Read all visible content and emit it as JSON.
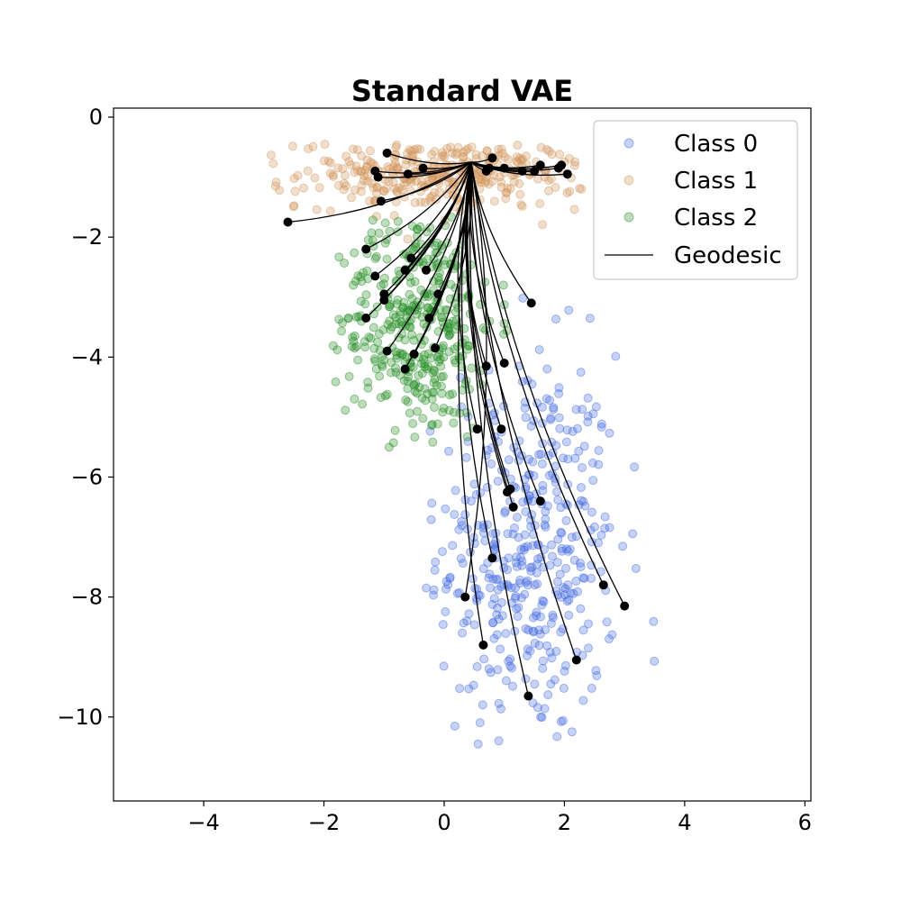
{
  "chart_data": {
    "type": "scatter",
    "title": "Standard VAE",
    "xlabel": "",
    "ylabel": "",
    "xlim": [
      -5.5,
      6.1
    ],
    "ylim": [
      -11.4,
      0.15
    ],
    "x_ticks": [
      -4,
      -2,
      0,
      2,
      4,
      6
    ],
    "y_ticks": [
      0,
      -2,
      -4,
      -6,
      -8,
      -10
    ],
    "x_tick_labels": [
      "−4",
      "−2",
      "0",
      "2",
      "4",
      "6"
    ],
    "y_tick_labels": [
      "0",
      "−2",
      "−4",
      "−6",
      "−8",
      "−10"
    ],
    "grid": false,
    "legend_position": "top-right",
    "series": [
      {
        "name": "Class 0",
        "kind": "scatter",
        "color": "#4169e1",
        "cluster": {
          "count": 420,
          "cx": 1.4,
          "cy": -7.2,
          "sx": 0.75,
          "sy": 1.65,
          "xmin": -0.3,
          "xmax": 3.5,
          "ymin": -10.9,
          "ymax": -2.5
        }
      },
      {
        "name": "Class 1",
        "kind": "scatter",
        "color": "#d2955a",
        "cluster": {
          "count": 340,
          "cx": 0.0,
          "cy": -0.95,
          "sx": 1.2,
          "sy": 0.28,
          "xmin": -2.9,
          "xmax": 2.3,
          "ymin": -2.4,
          "ymax": -0.45
        }
      },
      {
        "name": "Class 2",
        "kind": "scatter",
        "color": "#228b22",
        "cluster": {
          "count": 380,
          "cx": -0.45,
          "cy": -3.4,
          "sx": 0.65,
          "sy": 0.95,
          "xmin": -1.9,
          "xmax": 2.3,
          "ymin": -5.6,
          "ymax": -1.6
        }
      },
      {
        "name": "Geodesic",
        "kind": "line",
        "color": "#000000",
        "origin": [
          0.45,
          -0.75
        ],
        "endpoints": [
          [
            -0.95,
            -0.6
          ],
          [
            -1.15,
            -0.9
          ],
          [
            -1.1,
            -1.0
          ],
          [
            -0.35,
            -0.85
          ],
          [
            -0.6,
            -0.95
          ],
          [
            0.8,
            -0.68
          ],
          [
            0.75,
            -0.85
          ],
          [
            0.7,
            -0.9
          ],
          [
            1.0,
            -0.85
          ],
          [
            1.3,
            -0.9
          ],
          [
            1.5,
            -0.9
          ],
          [
            1.6,
            -0.8
          ],
          [
            1.95,
            -0.8
          ],
          [
            2.05,
            -0.95
          ],
          [
            1.9,
            -0.85
          ],
          [
            -2.6,
            -1.75
          ],
          [
            -1.05,
            -1.4
          ],
          [
            -1.3,
            -2.2
          ],
          [
            -1.15,
            -2.65
          ],
          [
            -1.0,
            -2.95
          ],
          [
            -1.0,
            -3.05
          ],
          [
            -1.3,
            -3.35
          ],
          [
            -0.55,
            -2.35
          ],
          [
            -0.65,
            -2.55
          ],
          [
            -0.3,
            -2.55
          ],
          [
            -0.1,
            -2.95
          ],
          [
            -0.25,
            -3.35
          ],
          [
            -0.95,
            -3.9
          ],
          [
            -0.5,
            -3.95
          ],
          [
            -0.65,
            -4.2
          ],
          [
            -0.15,
            -3.85
          ],
          [
            0.7,
            -4.15
          ],
          [
            1.0,
            -4.1
          ],
          [
            1.45,
            -3.1
          ],
          [
            0.55,
            -5.2
          ],
          [
            0.95,
            -5.2
          ],
          [
            1.05,
            -6.25
          ],
          [
            1.1,
            -6.2
          ],
          [
            1.15,
            -6.5
          ],
          [
            1.6,
            -6.4
          ],
          [
            0.35,
            -8.0
          ],
          [
            0.8,
            -7.35
          ],
          [
            0.65,
            -8.8
          ],
          [
            1.4,
            -9.65
          ],
          [
            2.2,
            -9.05
          ],
          [
            2.65,
            -7.8
          ],
          [
            3.0,
            -8.15
          ]
        ]
      }
    ]
  }
}
